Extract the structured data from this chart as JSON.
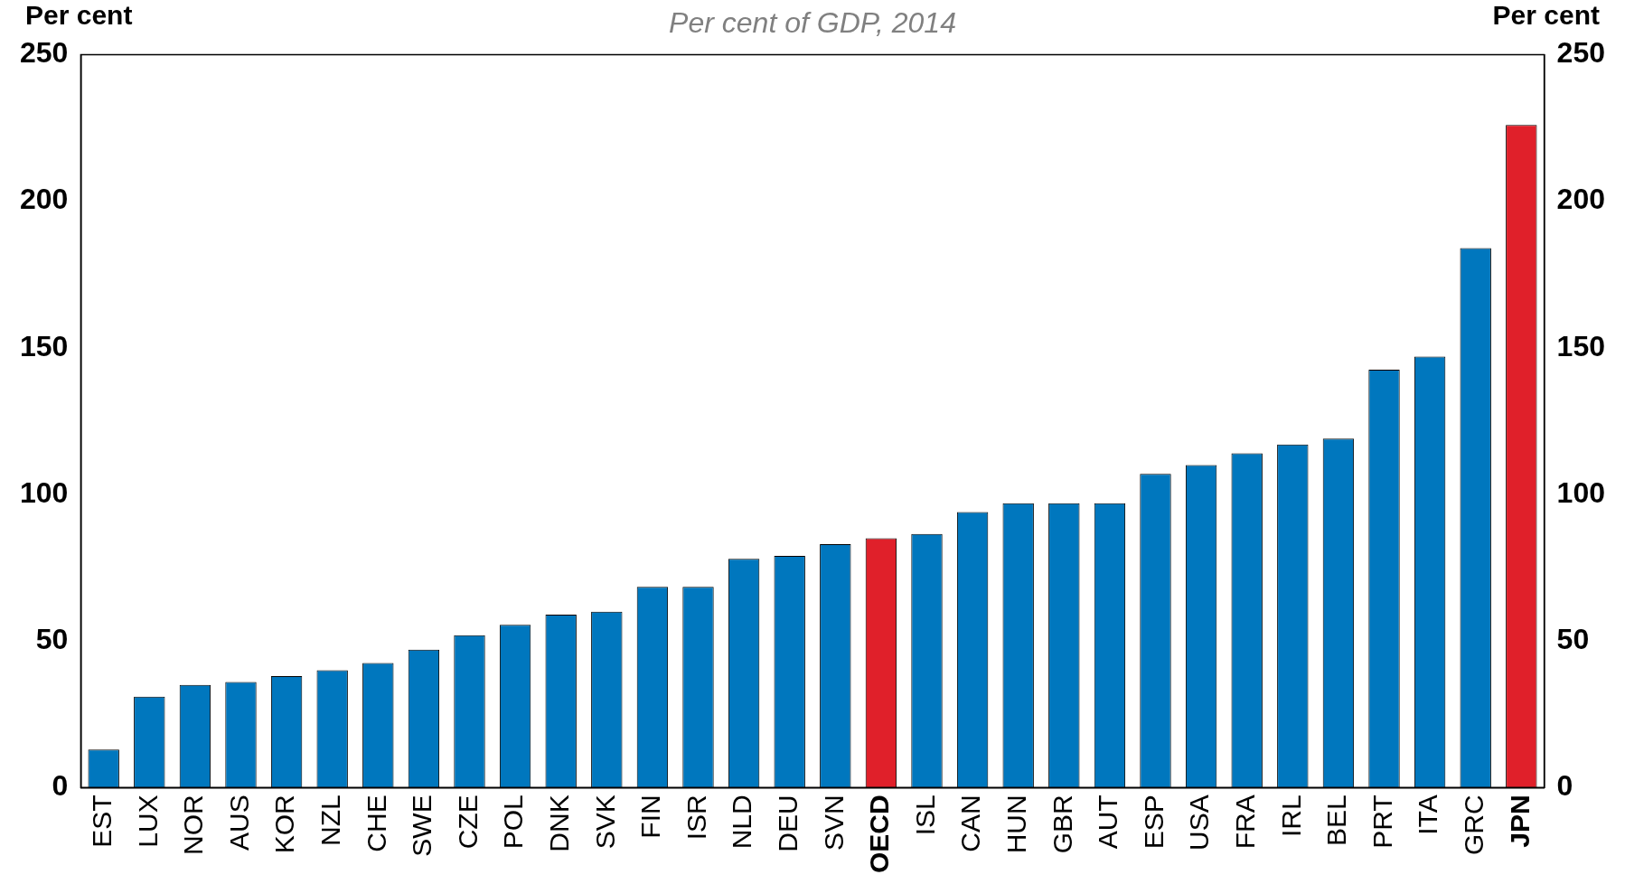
{
  "chart_data": {
    "type": "bar",
    "title": "Per cent of GDP, 2014",
    "ylabel": "Per cent",
    "y2label": "Per cent",
    "categories": [
      "EST",
      "LUX",
      "NOR",
      "AUS",
      "KOR",
      "NZL",
      "CHE",
      "SWE",
      "CZE",
      "POL",
      "DNK",
      "SVK",
      "FIN",
      "ISR",
      "NLD",
      "DEU",
      "SVN",
      "OECD",
      "ISL",
      "CAN",
      "HUN",
      "GBR",
      "AUT",
      "ESP",
      "USA",
      "FRA",
      "IRL",
      "BEL",
      "PRT",
      "ITA",
      "GRC",
      "JPN"
    ],
    "values": [
      13,
      31,
      35,
      36,
      38,
      40,
      42.5,
      47,
      52,
      55.5,
      59,
      60,
      68.5,
      68.5,
      78,
      79,
      83,
      85,
      86.5,
      94,
      97,
      97,
      97,
      107,
      110,
      114,
      117,
      119,
      142.5,
      147,
      184,
      226
    ],
    "colors": [
      "#0077be",
      "#0077be",
      "#0077be",
      "#0077be",
      "#0077be",
      "#0077be",
      "#0077be",
      "#0077be",
      "#0077be",
      "#0077be",
      "#0077be",
      "#0077be",
      "#0077be",
      "#0077be",
      "#0077be",
      "#0077be",
      "#0077be",
      "#e0202a",
      "#0077be",
      "#0077be",
      "#0077be",
      "#0077be",
      "#0077be",
      "#0077be",
      "#0077be",
      "#0077be",
      "#0077be",
      "#0077be",
      "#0077be",
      "#0077be",
      "#0077be",
      "#e0202a"
    ],
    "ylim": [
      0,
      250
    ],
    "yticks": [
      0,
      50,
      100,
      150,
      200,
      250
    ],
    "y2lim": [
      0,
      250
    ],
    "y2ticks": [
      0,
      50,
      100,
      150,
      200,
      250
    ],
    "grid": false,
    "legend": false
  }
}
